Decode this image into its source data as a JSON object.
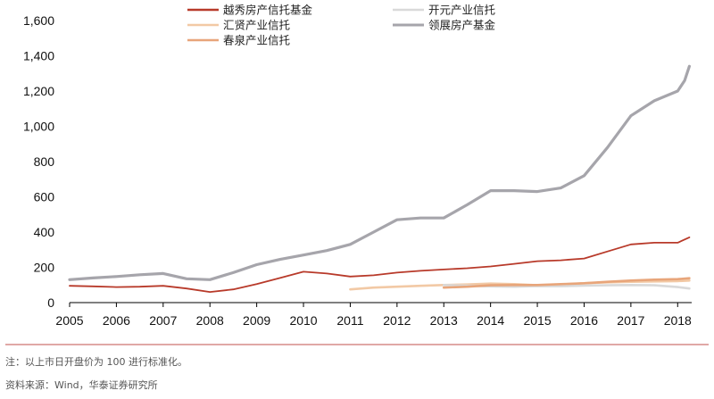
{
  "chart_data": {
    "type": "line",
    "title": "",
    "xlabel": "",
    "ylabel": "",
    "ylim": [
      0,
      1600
    ],
    "yticks": [
      0,
      200,
      400,
      600,
      800,
      1000,
      1200,
      1400,
      1600
    ],
    "ytick_labels": [
      "0",
      "200",
      "400",
      "600",
      "800",
      "1,000",
      "1,200",
      "1,400",
      "1,600"
    ],
    "xlim": [
      2005,
      2018.3
    ],
    "xticks": [
      2005,
      2006,
      2007,
      2008,
      2009,
      2010,
      2011,
      2012,
      2013,
      2014,
      2015,
      2016,
      2017,
      2018
    ],
    "xtick_labels": [
      "2005",
      "2006",
      "2007",
      "2008",
      "2009",
      "2010",
      "2011",
      "2012",
      "2013",
      "2014",
      "2015",
      "2016",
      "2017",
      "2018"
    ],
    "grid": false,
    "legend_position": "top",
    "series": [
      {
        "name": "越秀房产信托基金",
        "color": "#b83a2a",
        "x": [
          2005,
          2005.5,
          2006,
          2006.5,
          2007,
          2007.5,
          2008,
          2008.5,
          2009,
          2009.5,
          2010,
          2010.5,
          2011,
          2011.5,
          2012,
          2012.5,
          2013,
          2013.5,
          2014,
          2014.5,
          2015,
          2015.5,
          2016,
          2016.5,
          2017,
          2017.5,
          2018,
          2018.25
        ],
        "values": [
          95,
          92,
          88,
          90,
          95,
          80,
          60,
          75,
          105,
          140,
          175,
          165,
          148,
          155,
          170,
          180,
          188,
          195,
          205,
          220,
          235,
          240,
          250,
          290,
          330,
          340,
          340,
          370
        ]
      },
      {
        "name": "开元产业信托",
        "color": "#d9d9d9",
        "x": [
          2013,
          2013.5,
          2014,
          2014.5,
          2015,
          2015.5,
          2016,
          2016.5,
          2017,
          2017.5,
          2018,
          2018.25
        ],
        "values": [
          100,
          95,
          92,
          90,
          94,
          93,
          96,
          98,
          100,
          98,
          88,
          80
        ]
      },
      {
        "name": "汇贤产业信托",
        "color": "#f2c9a5",
        "x": [
          2011,
          2011.5,
          2012,
          2012.5,
          2013,
          2013.5,
          2014,
          2014.5,
          2015,
          2015.5,
          2016,
          2016.5,
          2017,
          2017.5,
          2018,
          2018.25
        ],
        "values": [
          75,
          85,
          90,
          95,
          100,
          103,
          108,
          105,
          98,
          102,
          110,
          115,
          118,
          120,
          122,
          125
        ]
      },
      {
        "name": "领展房产基金",
        "color": "#a6a5ab",
        "x": [
          2005,
          2005.5,
          2006,
          2006.5,
          2007,
          2007.5,
          2008,
          2008.5,
          2009,
          2009.5,
          2010,
          2010.5,
          2011,
          2011.5,
          2012,
          2012.5,
          2013,
          2013.5,
          2014,
          2014.5,
          2015,
          2015.5,
          2016,
          2016.5,
          2017,
          2017.5,
          2018,
          2018.15,
          2018.25
        ],
        "values": [
          130,
          140,
          148,
          158,
          165,
          135,
          130,
          170,
          215,
          245,
          270,
          295,
          330,
          400,
          470,
          480,
          480,
          555,
          635,
          635,
          630,
          650,
          720,
          880,
          1060,
          1145,
          1200,
          1260,
          1340
        ]
      },
      {
        "name": "春泉产业信托",
        "color": "#e8a57a",
        "x": [
          2013,
          2013.5,
          2014,
          2014.5,
          2015,
          2015.5,
          2016,
          2016.5,
          2017,
          2017.5,
          2018,
          2018.25
        ],
        "values": [
          85,
          90,
          98,
          100,
          100,
          105,
          110,
          118,
          125,
          130,
          133,
          138
        ]
      }
    ]
  },
  "notes": {
    "note": "注：以上市日开盘价为 100 进行标准化。",
    "source": "资料来源：Wind，华泰证券研究所"
  }
}
